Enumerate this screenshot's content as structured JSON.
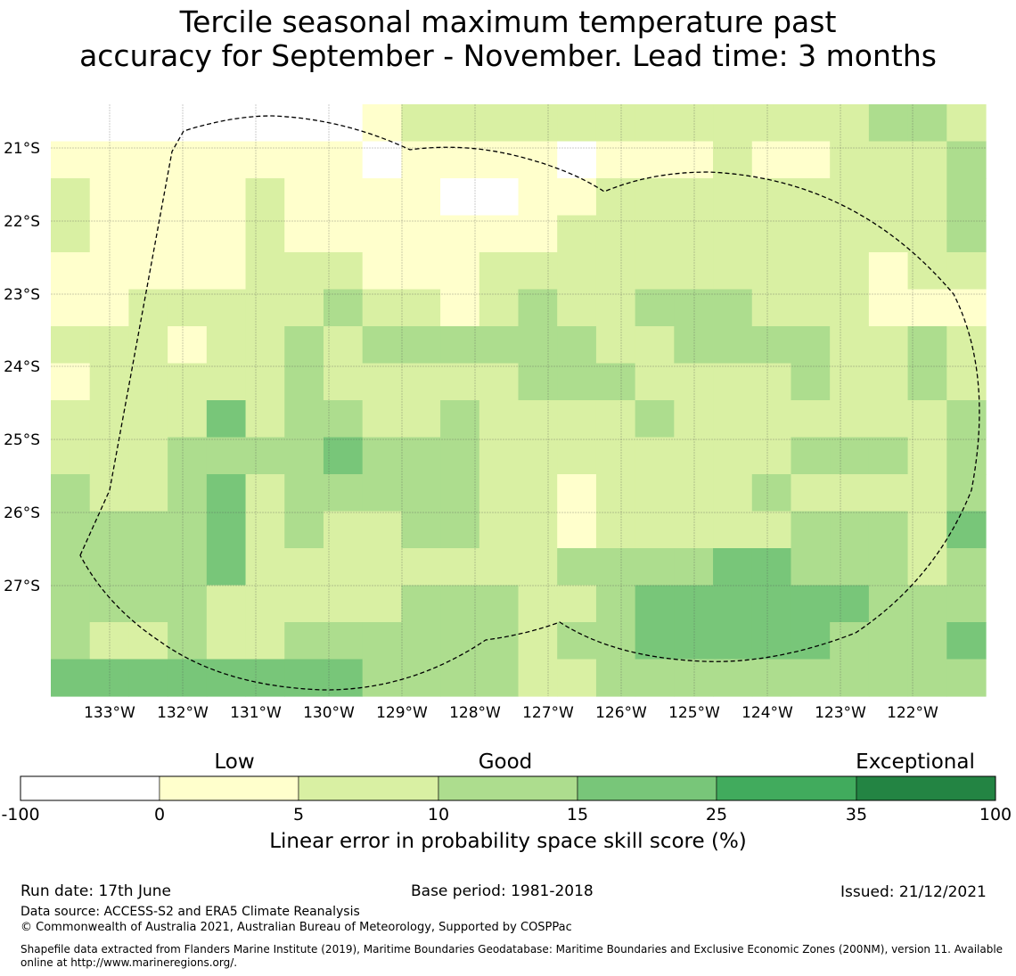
{
  "title_line1": "Tercile seasonal maximum temperature past",
  "title_line2": "accuracy for September - November. Lead time: 3 months",
  "map": {
    "lon_labels": [
      "133°W",
      "132°W",
      "131°W",
      "130°W",
      "129°W",
      "128°W",
      "127°W",
      "126°W",
      "125°W",
      "124°W",
      "123°W",
      "122°W"
    ],
    "lat_labels": [
      "21°S",
      "22°S",
      "23°S",
      "24°S",
      "25°S",
      "26°S",
      "27°S"
    ],
    "colors": {
      "-100": "#ffffff",
      "0": "#ffffcc",
      "5": "#d9f0a3",
      "10": "#addd8e",
      "15": "#78c679",
      "25": "#41ab5d",
      "35": "#238443"
    },
    "grid": [
      [
        -100,
        -100,
        -100,
        -100,
        -100,
        -100,
        -100,
        -100,
        0,
        5,
        5,
        5,
        5,
        5,
        5,
        5,
        5,
        5,
        5,
        5,
        5,
        10,
        10,
        5
      ],
      [
        0,
        0,
        0,
        0,
        0,
        0,
        0,
        0,
        -100,
        0,
        0,
        0,
        0,
        -100,
        0,
        0,
        0,
        5,
        0,
        0,
        5,
        5,
        5,
        10
      ],
      [
        5,
        0,
        0,
        0,
        0,
        5,
        0,
        0,
        0,
        0,
        -100,
        -100,
        0,
        0,
        5,
        5,
        5,
        5,
        5,
        5,
        5,
        5,
        5,
        10
      ],
      [
        5,
        0,
        0,
        0,
        0,
        5,
        0,
        0,
        0,
        0,
        0,
        0,
        0,
        5,
        5,
        5,
        5,
        5,
        5,
        5,
        5,
        5,
        5,
        10
      ],
      [
        0,
        0,
        0,
        0,
        0,
        5,
        5,
        5,
        0,
        0,
        0,
        5,
        5,
        5,
        5,
        5,
        5,
        5,
        5,
        5,
        5,
        0,
        5,
        5
      ],
      [
        0,
        0,
        5,
        5,
        5,
        5,
        5,
        10,
        5,
        5,
        0,
        5,
        10,
        5,
        5,
        10,
        10,
        10,
        5,
        5,
        5,
        0,
        0,
        0
      ],
      [
        5,
        5,
        5,
        0,
        5,
        5,
        10,
        5,
        10,
        10,
        10,
        10,
        10,
        10,
        5,
        5,
        10,
        10,
        10,
        10,
        5,
        5,
        10,
        5
      ],
      [
        0,
        5,
        5,
        5,
        5,
        5,
        10,
        5,
        5,
        5,
        5,
        5,
        10,
        10,
        10,
        5,
        5,
        5,
        5,
        10,
        5,
        5,
        10,
        5
      ],
      [
        5,
        5,
        5,
        5,
        15,
        5,
        10,
        10,
        5,
        5,
        10,
        5,
        5,
        5,
        5,
        10,
        5,
        5,
        5,
        5,
        5,
        5,
        5,
        10
      ],
      [
        5,
        5,
        5,
        10,
        10,
        10,
        10,
        15,
        10,
        10,
        10,
        5,
        5,
        5,
        5,
        5,
        5,
        5,
        5,
        10,
        10,
        10,
        5,
        10
      ],
      [
        10,
        5,
        5,
        10,
        15,
        5,
        10,
        10,
        10,
        10,
        10,
        5,
        5,
        0,
        5,
        5,
        5,
        5,
        10,
        5,
        5,
        5,
        5,
        10
      ],
      [
        10,
        10,
        10,
        10,
        15,
        5,
        10,
        5,
        5,
        10,
        10,
        5,
        5,
        0,
        5,
        5,
        5,
        5,
        5,
        10,
        10,
        10,
        5,
        15
      ],
      [
        10,
        10,
        10,
        10,
        15,
        5,
        5,
        5,
        5,
        5,
        5,
        5,
        5,
        10,
        10,
        10,
        10,
        15,
        15,
        10,
        10,
        10,
        5,
        10
      ],
      [
        10,
        10,
        10,
        10,
        5,
        5,
        5,
        5,
        5,
        10,
        10,
        10,
        5,
        5,
        10,
        15,
        15,
        15,
        15,
        15,
        15,
        10,
        10,
        10
      ],
      [
        10,
        5,
        5,
        10,
        5,
        5,
        10,
        10,
        10,
        10,
        10,
        10,
        5,
        10,
        10,
        15,
        15,
        15,
        15,
        15,
        10,
        10,
        10,
        15
      ],
      [
        15,
        15,
        15,
        15,
        15,
        15,
        15,
        15,
        10,
        10,
        10,
        10,
        5,
        5,
        10,
        10,
        10,
        10,
        10,
        10,
        10,
        10,
        10,
        10
      ]
    ]
  },
  "colorbar": {
    "categories": [
      "Low",
      "Good",
      "Exceptional"
    ],
    "ticks": [
      "-100",
      "0",
      "5",
      "10",
      "15",
      "25",
      "35",
      "100"
    ],
    "colors": [
      "#ffffff",
      "#ffffcc",
      "#d9f0a3",
      "#addd8e",
      "#78c679",
      "#41ab5d",
      "#238443"
    ],
    "label": "Linear error in probability space skill score (%)"
  },
  "footer": {
    "run_date": "Run date: 17th June",
    "base_period": "Base period: 1981-2018",
    "issued": "Issued: 21/12/2021",
    "data_source": "Data source: ACCESS-S2 and ERA5 Climate Reanalysis",
    "copyright": "© Commonwealth of Australia 2021, Australian Bureau of Meteorology, Supported by COSPPac",
    "shapefile": "Shapefile data extracted from Flanders Marine Institute (2019), Maritime Boundaries Geodatabase: Maritime Boundaries and Exclusive Economic Zones (200NM), version 11. Available online at http://www.marineregions.org/."
  }
}
